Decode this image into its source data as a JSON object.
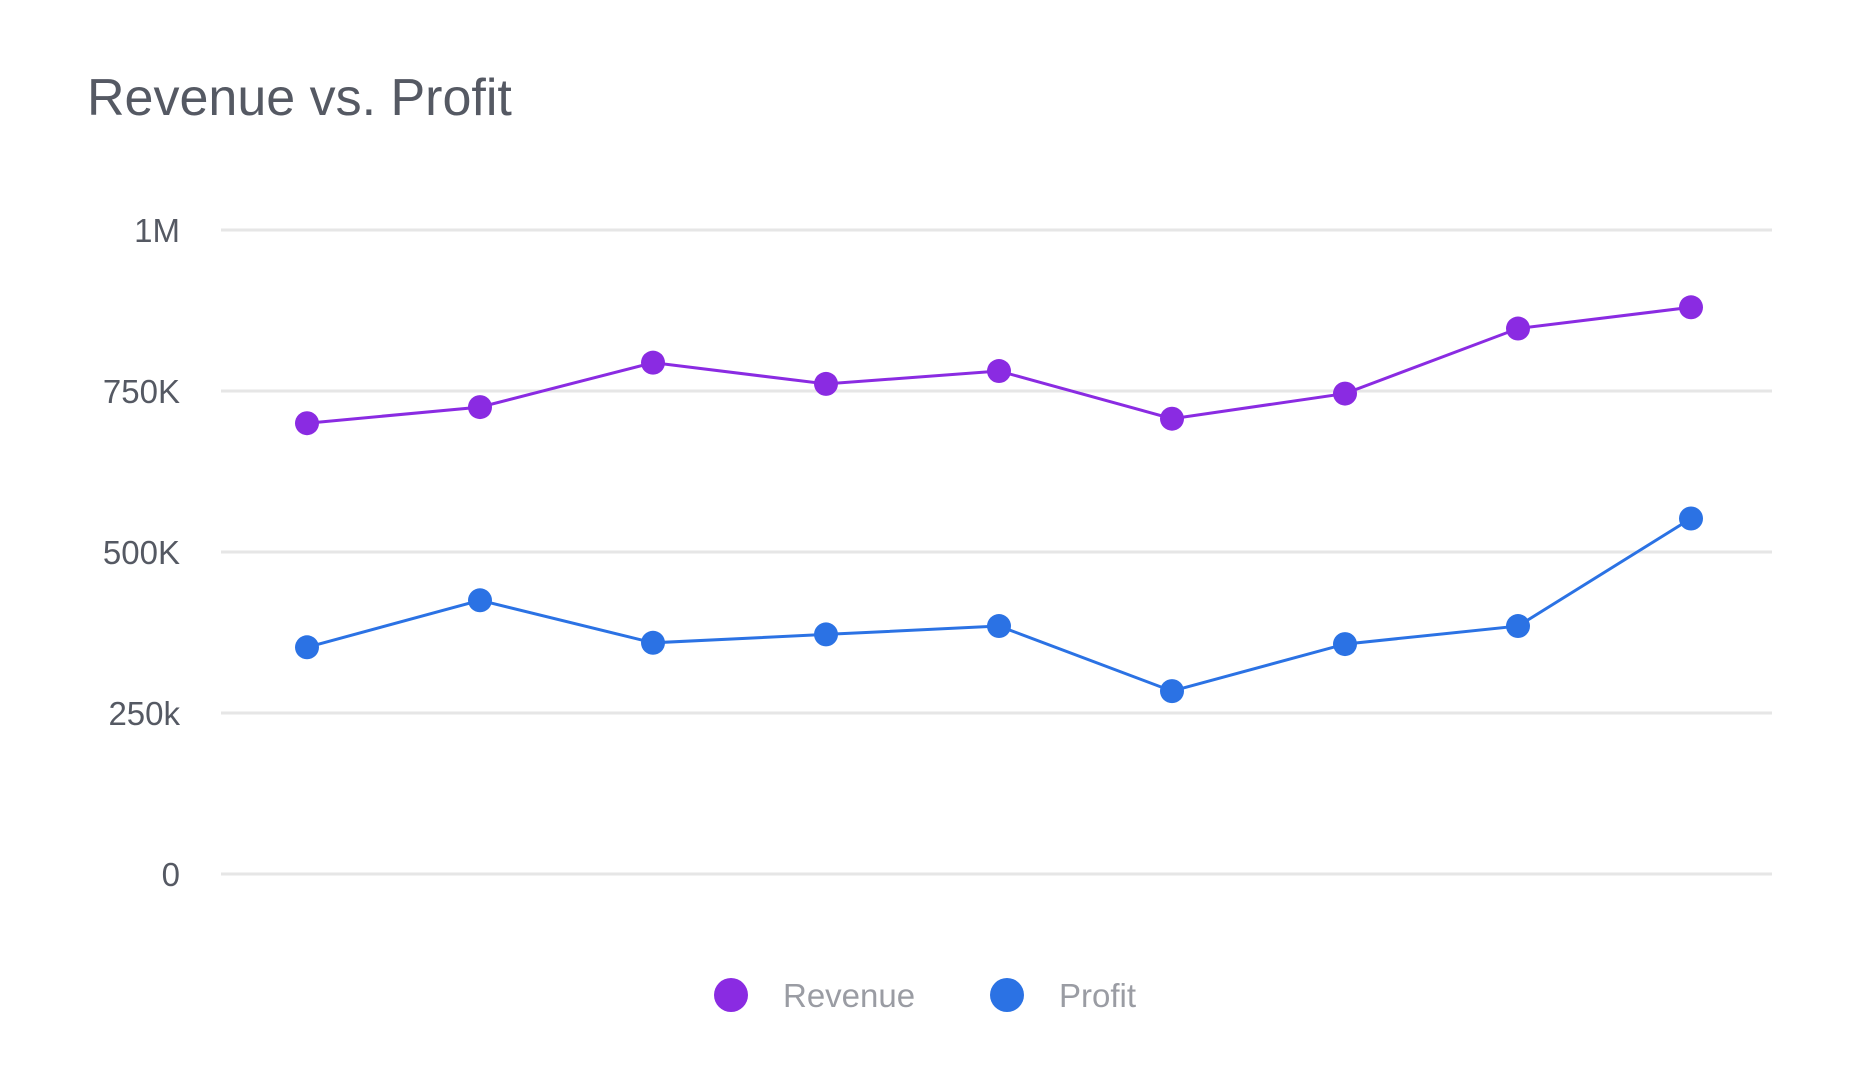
{
  "chart_data": {
    "type": "line",
    "title": "Revenue vs. Profit",
    "xlabel": "",
    "ylabel": "",
    "x": [
      1,
      2,
      3,
      4,
      5,
      6,
      7,
      8,
      9
    ],
    "ylim": [
      0,
      1000000
    ],
    "yticks": [
      0,
      250000,
      500000,
      750000,
      1000000
    ],
    "ytick_labels": [
      "0",
      "250k",
      "500K",
      "750K",
      "1M"
    ],
    "grid": true,
    "legend_position": "bottom-center",
    "series": [
      {
        "name": "Revenue",
        "color": "#8a2be2",
        "values": [
          700000,
          725000,
          794000,
          761000,
          781000,
          707000,
          746000,
          847000,
          880000
        ]
      },
      {
        "name": "Profit",
        "color": "#2b72e4",
        "values": [
          352000,
          425000,
          359000,
          372000,
          385000,
          284000,
          357000,
          385000,
          552000
        ]
      }
    ]
  }
}
